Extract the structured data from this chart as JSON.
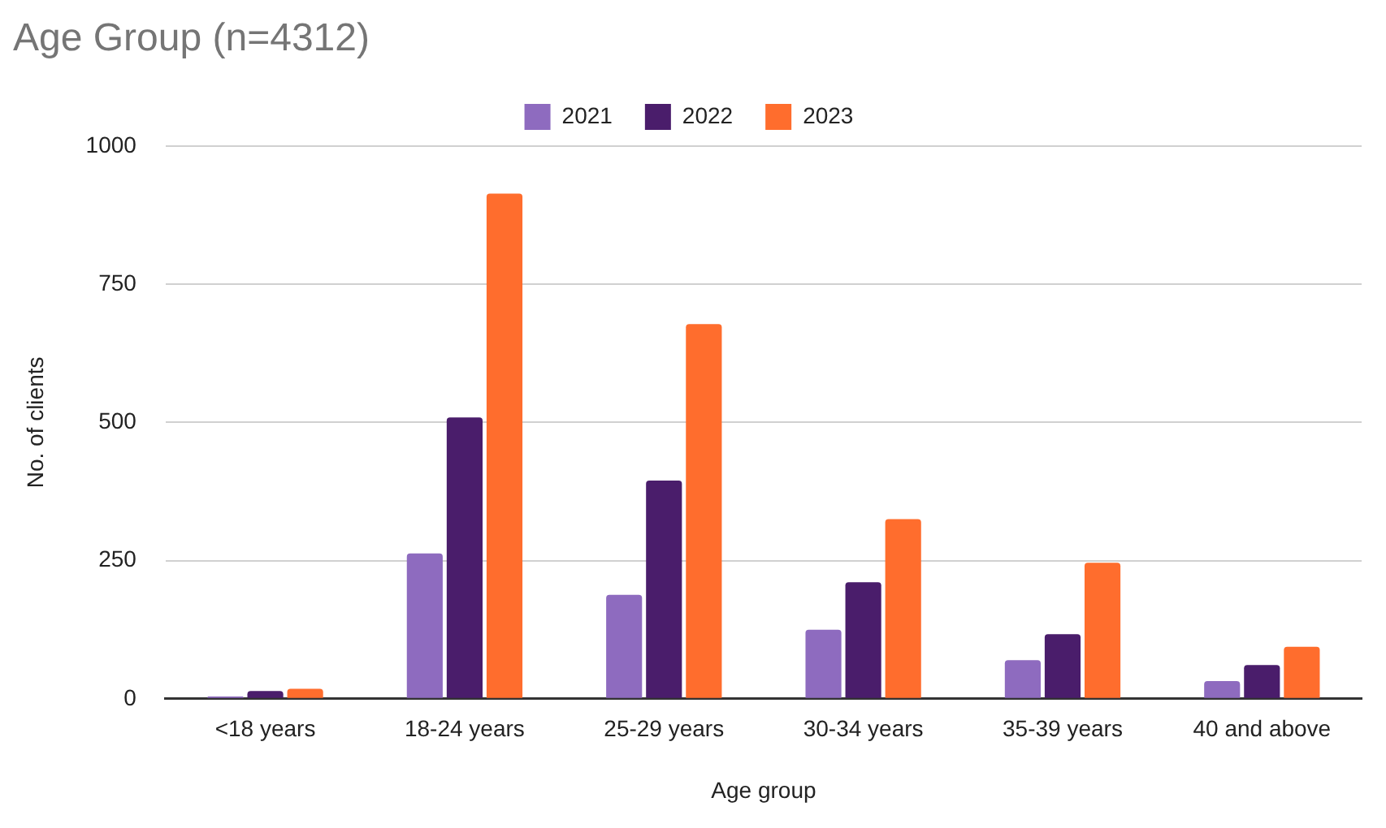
{
  "chart_data": {
    "type": "bar",
    "title": "Age Group (n=4312)",
    "xlabel": "Age group",
    "ylabel": "No. of clients",
    "categories": [
      "<18 years",
      "18-24 years",
      "25-29 years",
      "30-34 years",
      "35-39 years",
      "40 and above"
    ],
    "series": [
      {
        "name": "2021",
        "color": "#8e6bbf",
        "values": [
          4,
          263,
          188,
          125,
          70,
          32
        ]
      },
      {
        "name": "2022",
        "color": "#4a1d6b",
        "values": [
          14,
          509,
          395,
          211,
          117,
          61
        ]
      },
      {
        "name": "2023",
        "color": "#ff6d2d",
        "values": [
          18,
          914,
          678,
          325,
          246,
          94
        ]
      }
    ],
    "ylim": [
      0,
      1000
    ],
    "yticks": [
      0,
      250,
      500,
      750,
      1000
    ],
    "grid": "y",
    "legend": "top"
  }
}
